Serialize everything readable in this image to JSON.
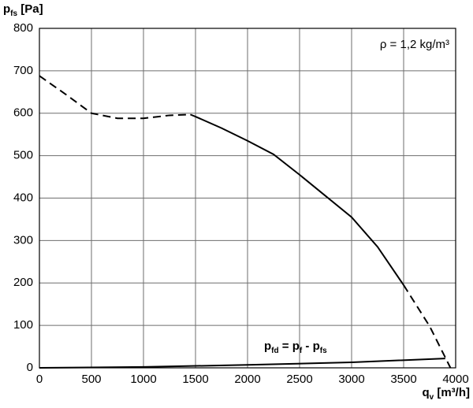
{
  "chart_data": {
    "type": "line",
    "y_label": [
      {
        "text": "p",
        "sub": false
      },
      {
        "text": "fs",
        "sub": true
      },
      {
        "text": " [Pa]",
        "sub": false
      }
    ],
    "x_label": [
      {
        "text": "q",
        "sub": false
      },
      {
        "text": "v",
        "sub": true
      },
      {
        "text": " [m³/h]",
        "sub": false
      }
    ],
    "annotations": [
      {
        "parts": [
          {
            "text": "ρ = 1,2 kg/m³",
            "sub": false
          }
        ]
      },
      {
        "parts": [
          {
            "text": "p",
            "sub": false
          },
          {
            "text": "fd",
            "sub": true
          },
          {
            "text": " = p",
            "sub": false
          },
          {
            "text": "f",
            "sub": true
          },
          {
            "text": " - p",
            "sub": false
          },
          {
            "text": "fs",
            "sub": true
          }
        ]
      }
    ],
    "xlim": [
      0,
      4000
    ],
    "xticks": [
      0,
      500,
      1000,
      1500,
      2000,
      2500,
      3000,
      3500,
      4000
    ],
    "ylim": [
      0,
      800
    ],
    "yticks": [
      0,
      100,
      200,
      300,
      400,
      500,
      600,
      700,
      800
    ],
    "grid": true,
    "series": [
      {
        "color": "#000000",
        "style": "dashed",
        "x": [
          0,
          250,
          500,
          750,
          1000,
          1250,
          1450
        ],
        "values": [
          688,
          645,
          600,
          588,
          588,
          595,
          597
        ]
      },
      {
        "color": "#000000",
        "style": "solid",
        "x": [
          1450,
          1500,
          1750,
          2000,
          2250,
          2500,
          2750,
          3000,
          3250,
          3500
        ],
        "values": [
          597,
          592,
          565,
          535,
          503,
          455,
          405,
          355,
          285,
          195
        ]
      },
      {
        "color": "#000000",
        "style": "dashed",
        "x": [
          3500,
          3750,
          3950
        ],
        "values": [
          195,
          98,
          0
        ]
      },
      {
        "color": "#000000",
        "style": "solid",
        "x": [
          0,
          1000,
          2000,
          3000,
          3900
        ],
        "values": [
          0,
          2,
          7,
          13,
          22
        ]
      }
    ]
  }
}
